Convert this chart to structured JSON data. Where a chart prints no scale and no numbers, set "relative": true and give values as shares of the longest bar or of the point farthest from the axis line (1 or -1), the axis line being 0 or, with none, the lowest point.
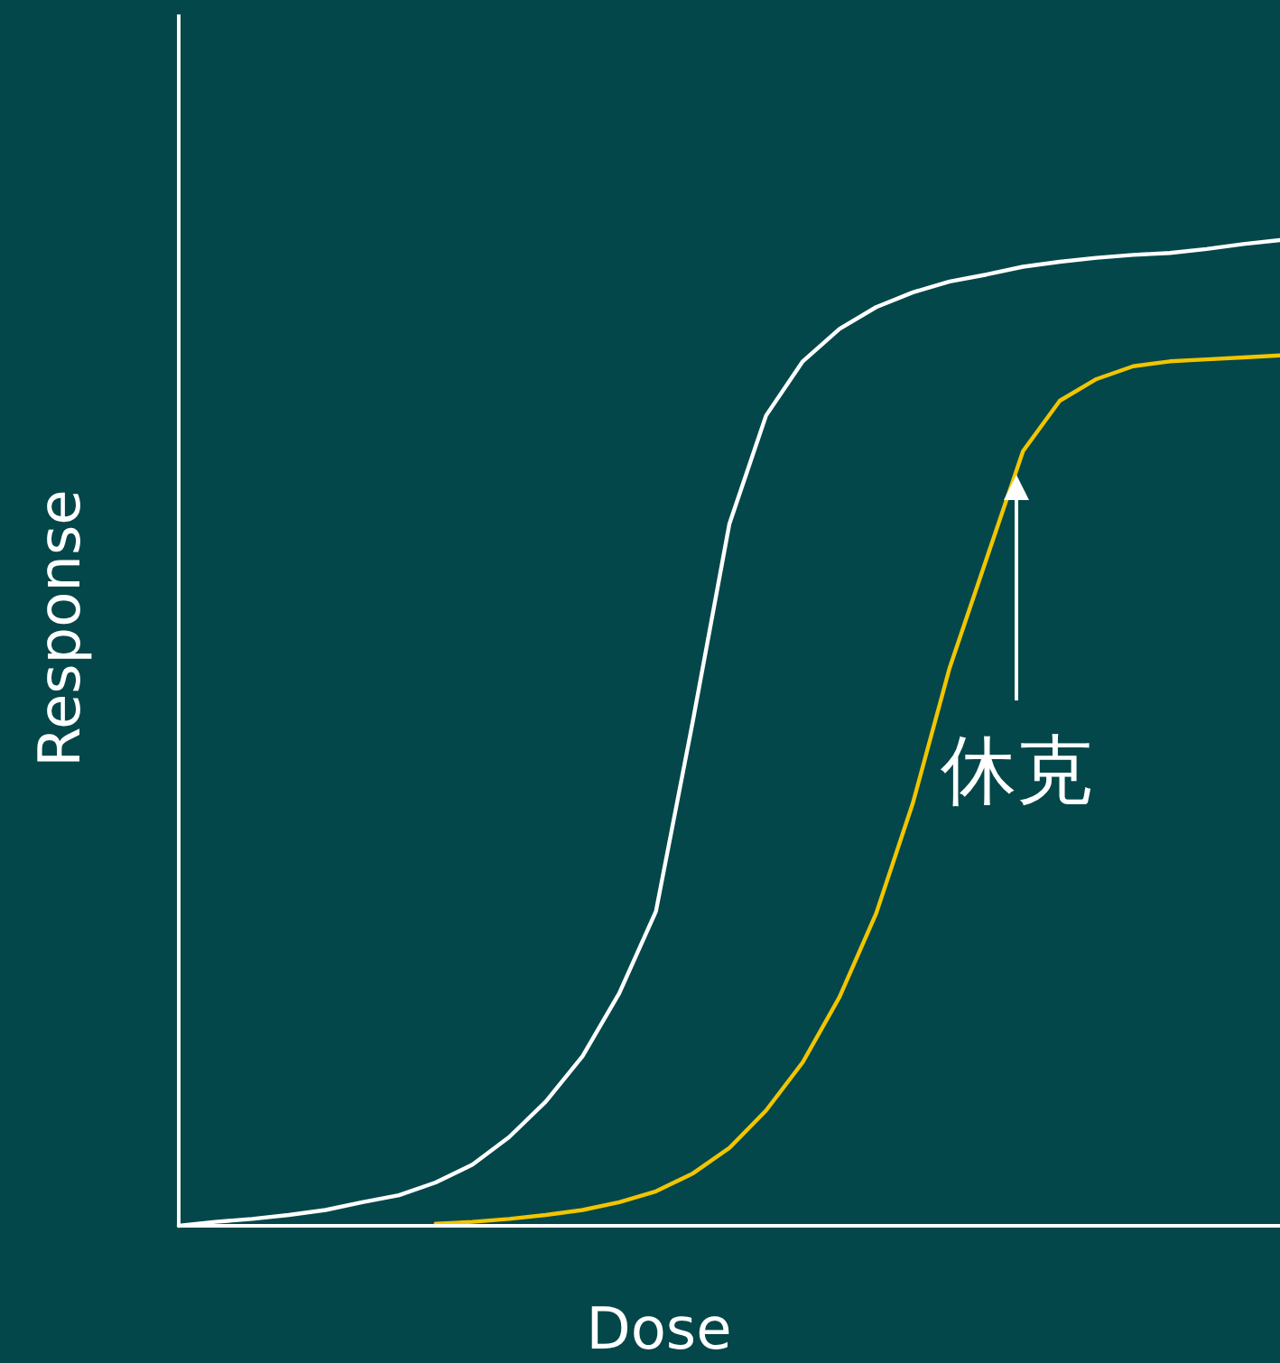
{
  "chart_data": {
    "type": "line",
    "relative": true,
    "xlabel": "Dose",
    "ylabel": "Response",
    "categories": [
      null,
      null,
      null,
      null,
      null,
      null,
      null,
      null,
      null,
      null,
      null,
      null,
      null,
      null,
      null,
      null,
      null,
      null,
      null,
      null,
      null,
      null,
      null,
      null,
      null,
      null,
      null,
      null,
      null,
      null,
      null
    ],
    "series": [
      {
        "color": "#ffffff",
        "values": [
          0,
          0.004,
          0.007,
          0.011,
          0.016,
          0.024,
          0.031,
          0.044,
          0.062,
          0.09,
          0.126,
          0.172,
          0.236,
          0.319,
          0.511,
          0.712,
          0.822,
          0.877,
          0.91,
          0.932,
          0.947,
          0.958,
          0.965,
          0.973,
          0.978,
          0.982,
          0.985,
          0.987,
          0.991,
          0.996,
          1
        ]
      },
      {
        "color": "#f2c500",
        "values": [
          null,
          null,
          null,
          null,
          null,
          null,
          null,
          0.002,
          0.004,
          0.007,
          0.011,
          0.016,
          0.024,
          0.035,
          0.053,
          0.079,
          0.117,
          0.166,
          0.232,
          0.317,
          0.429,
          0.566,
          0.676,
          0.786,
          0.837,
          0.859,
          0.872,
          0.877,
          0.879,
          0.881,
          0.883
        ]
      }
    ],
    "annotations": [
      "休克"
    ],
    "grid": false
  }
}
